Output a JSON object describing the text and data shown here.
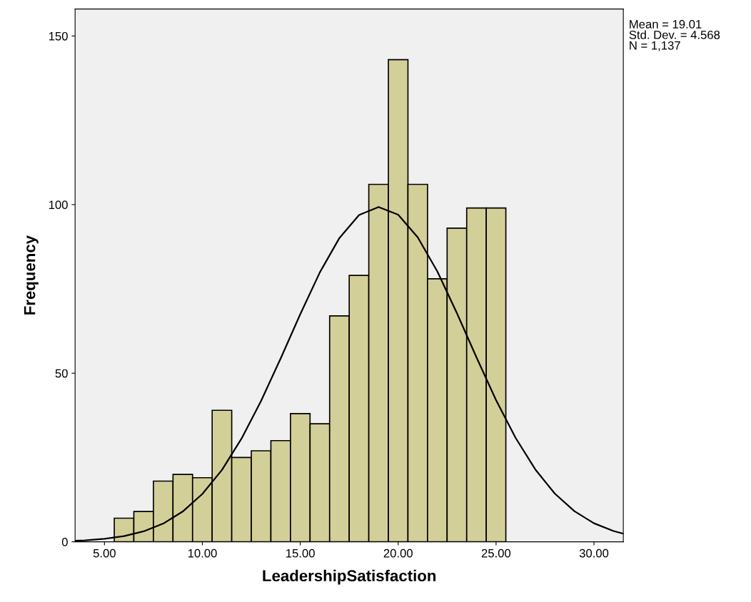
{
  "chart_data": {
    "type": "histogram",
    "xlabel": "LeadershipSatisfaction",
    "ylabel": "Frequency",
    "bins": [
      5.5,
      6.5,
      7.5,
      8.5,
      9.5,
      10.5,
      11.5,
      12.5,
      13.5,
      14.5,
      15.5,
      16.5,
      17.5,
      18.5,
      19.5,
      20.5,
      21.5,
      22.5,
      23.5,
      24.5,
      25.5
    ],
    "values": [
      7,
      9,
      18,
      20,
      19,
      39,
      25,
      27,
      30,
      38,
      35,
      67,
      79,
      106,
      143,
      106,
      78,
      93,
      99,
      99
    ],
    "color": "#d3cf98",
    "series": [
      {
        "type": "line",
        "color": "#000000",
        "marker": "none",
        "line_style": "solid",
        "x": [
          3.5,
          4,
          5,
          6,
          7,
          8,
          9,
          10,
          11,
          12,
          13,
          14,
          15,
          16,
          17,
          18,
          19,
          20,
          21,
          22,
          23,
          24,
          25,
          26,
          27,
          28,
          29,
          30,
          31,
          31.5
        ],
        "values": [
          0.3,
          0.4,
          0.9,
          1.7,
          3.1,
          5.4,
          9.0,
          14.2,
          21.3,
          30.6,
          41.8,
          54.4,
          67.5,
          79.9,
          90.1,
          96.9,
          99.3,
          97.0,
          90.3,
          80.2,
          67.8,
          54.7,
          42.0,
          30.8,
          21.5,
          14.3,
          9.1,
          5.5,
          3.2,
          2.4
        ]
      }
    ],
    "xlim": [
      3.5,
      31.5
    ],
    "ylim": [
      0,
      158
    ],
    "xticks": [
      {
        "value": 5,
        "label": "5.00"
      },
      {
        "value": 10,
        "label": "10.00"
      },
      {
        "value": 15,
        "label": "15.00"
      },
      {
        "value": 20,
        "label": "20.00"
      },
      {
        "value": 25,
        "label": "25.00"
      },
      {
        "value": 30,
        "label": "30.00"
      }
    ],
    "yticks": [
      0,
      50,
      100,
      150
    ],
    "annotations": [
      "Mean = 19.01\nStd. Dev. = 4.568\nN = 1,137"
    ],
    "grid": false,
    "legend": false
  }
}
